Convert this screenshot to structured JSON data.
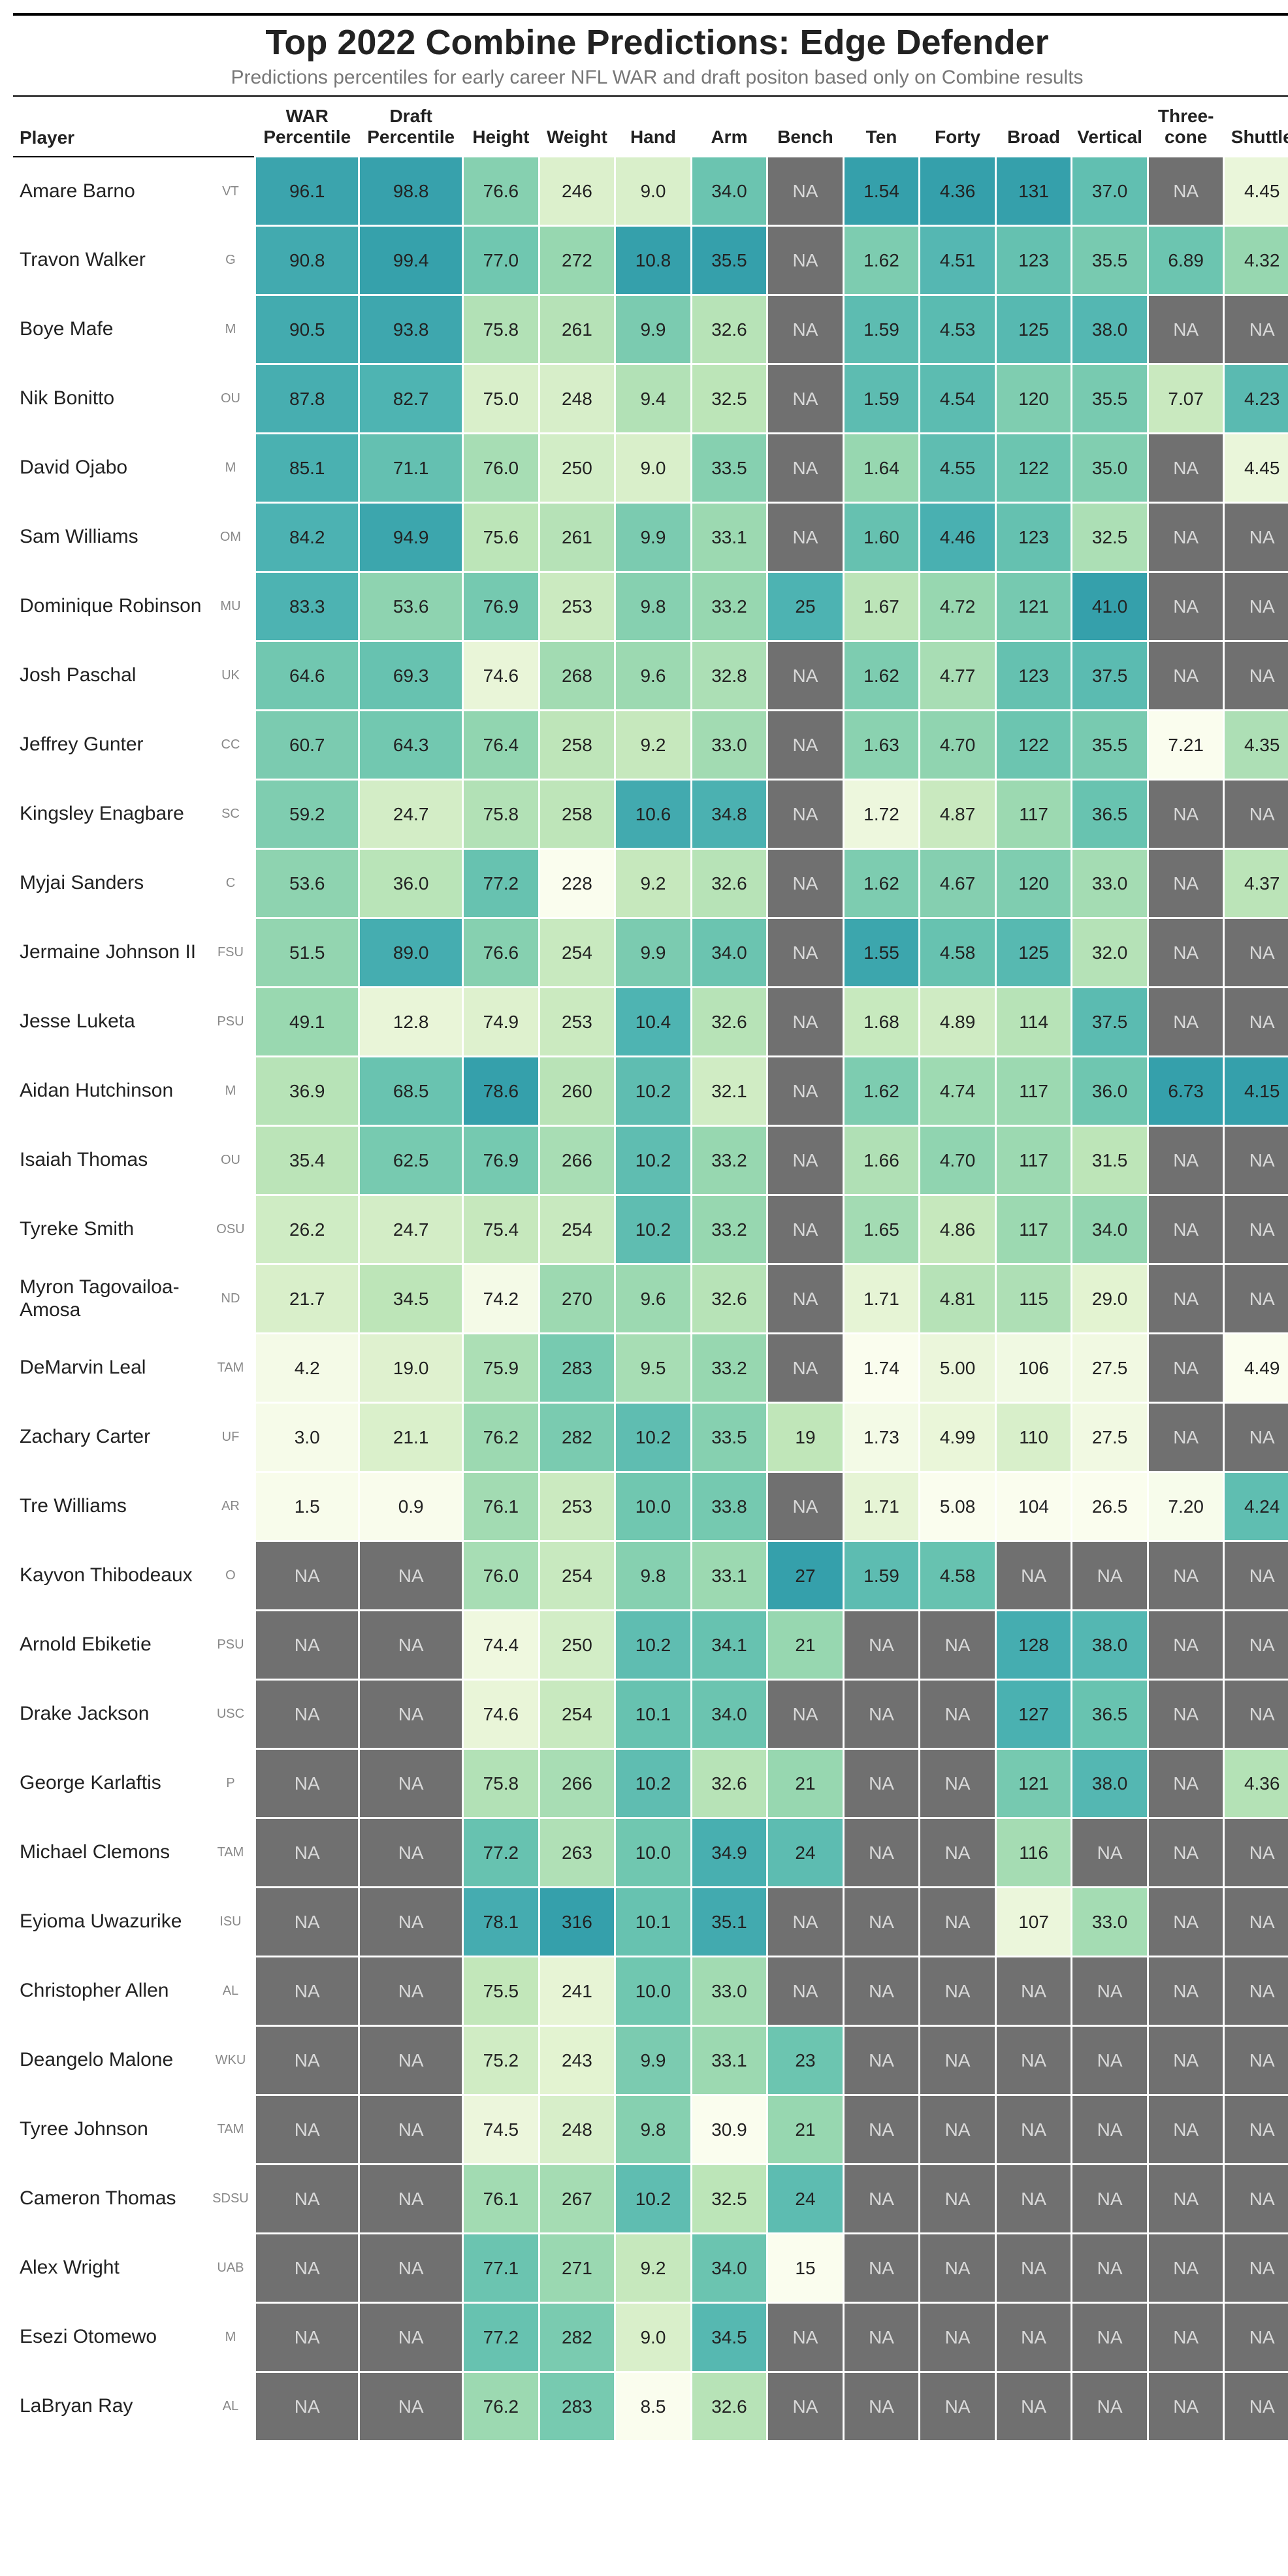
{
  "title": "Top 2022 Combine Predictions: Edge Defender",
  "subtitle": "Predictions percentiles for early career NFL WAR and draft positon based only on Combine results",
  "columns": [
    {
      "key": "player",
      "label": "Player"
    },
    {
      "key": "logo",
      "label": ""
    },
    {
      "key": "war",
      "label": "WAR Percentile"
    },
    {
      "key": "draft",
      "label": "Draft Percentile"
    },
    {
      "key": "height",
      "label": "Height"
    },
    {
      "key": "weight",
      "label": "Weight"
    },
    {
      "key": "hand",
      "label": "Hand"
    },
    {
      "key": "arm",
      "label": "Arm"
    },
    {
      "key": "bench",
      "label": "Bench"
    },
    {
      "key": "ten",
      "label": "Ten"
    },
    {
      "key": "forty",
      "label": "Forty"
    },
    {
      "key": "broad",
      "label": "Broad"
    },
    {
      "key": "vertical",
      "label": "Vertical"
    },
    {
      "key": "three",
      "label": "Three-cone"
    },
    {
      "key": "shuttle",
      "label": "Shuttle"
    }
  ],
  "na_color": "#707070",
  "na_text_color": "#d9d9d9",
  "heat": {
    "war": {
      "min": 0,
      "max": 100,
      "dir": "up"
    },
    "draft": {
      "min": 0,
      "max": 100,
      "dir": "up"
    },
    "height": {
      "min": 74.0,
      "max": 78.6,
      "dir": "up"
    },
    "weight": {
      "min": 228,
      "max": 316,
      "dir": "up"
    },
    "hand": {
      "min": 8.5,
      "max": 10.8,
      "dir": "up"
    },
    "arm": {
      "min": 30.9,
      "max": 35.5,
      "dir": "up"
    },
    "bench": {
      "min": 15,
      "max": 27,
      "dir": "up"
    },
    "ten": {
      "min": 1.54,
      "max": 1.74,
      "dir": "down"
    },
    "forty": {
      "min": 4.36,
      "max": 5.08,
      "dir": "down"
    },
    "broad": {
      "min": 104,
      "max": 131,
      "dir": "up"
    },
    "vertical": {
      "min": 26.5,
      "max": 41.0,
      "dir": "up"
    },
    "three": {
      "min": 6.73,
      "max": 7.21,
      "dir": "down"
    },
    "shuttle": {
      "min": 4.15,
      "max": 4.49,
      "dir": "down"
    }
  },
  "color_scale": [
    "#fafdee",
    "#e4f3d2",
    "#c0e6b9",
    "#97d7b0",
    "#6cc5b0",
    "#4db3b2",
    "#35a0ab"
  ],
  "rows": [
    {
      "player": "Amare Barno",
      "team": "VT",
      "war": "96.1",
      "draft": "98.8",
      "height": "76.6",
      "weight": "246",
      "hand": "9.0",
      "arm": "34.0",
      "bench": "NA",
      "ten": "1.54",
      "forty": "4.36",
      "broad": "131",
      "vertical": "37.0",
      "three": "NA",
      "shuttle": "4.45"
    },
    {
      "player": "Travon Walker",
      "team": "G",
      "war": "90.8",
      "draft": "99.4",
      "height": "77.0",
      "weight": "272",
      "hand": "10.8",
      "arm": "35.5",
      "bench": "NA",
      "ten": "1.62",
      "forty": "4.51",
      "broad": "123",
      "vertical": "35.5",
      "three": "6.89",
      "shuttle": "4.32"
    },
    {
      "player": "Boye Mafe",
      "team": "M",
      "war": "90.5",
      "draft": "93.8",
      "height": "75.8",
      "weight": "261",
      "hand": "9.9",
      "arm": "32.6",
      "bench": "NA",
      "ten": "1.59",
      "forty": "4.53",
      "broad": "125",
      "vertical": "38.0",
      "three": "NA",
      "shuttle": "NA"
    },
    {
      "player": "Nik Bonitto",
      "team": "OU",
      "war": "87.8",
      "draft": "82.7",
      "height": "75.0",
      "weight": "248",
      "hand": "9.4",
      "arm": "32.5",
      "bench": "NA",
      "ten": "1.59",
      "forty": "4.54",
      "broad": "120",
      "vertical": "35.5",
      "three": "7.07",
      "shuttle": "4.23"
    },
    {
      "player": "David Ojabo",
      "team": "M",
      "war": "85.1",
      "draft": "71.1",
      "height": "76.0",
      "weight": "250",
      "hand": "9.0",
      "arm": "33.5",
      "bench": "NA",
      "ten": "1.64",
      "forty": "4.55",
      "broad": "122",
      "vertical": "35.0",
      "three": "NA",
      "shuttle": "4.45"
    },
    {
      "player": "Sam Williams",
      "team": "OM",
      "war": "84.2",
      "draft": "94.9",
      "height": "75.6",
      "weight": "261",
      "hand": "9.9",
      "arm": "33.1",
      "bench": "NA",
      "ten": "1.60",
      "forty": "4.46",
      "broad": "123",
      "vertical": "32.5",
      "three": "NA",
      "shuttle": "NA"
    },
    {
      "player": "Dominique Robinson",
      "team": "MU",
      "war": "83.3",
      "draft": "53.6",
      "height": "76.9",
      "weight": "253",
      "hand": "9.8",
      "arm": "33.2",
      "bench": "25",
      "ten": "1.67",
      "forty": "4.72",
      "broad": "121",
      "vertical": "41.0",
      "three": "NA",
      "shuttle": "NA"
    },
    {
      "player": "Josh Paschal",
      "team": "UK",
      "war": "64.6",
      "draft": "69.3",
      "height": "74.6",
      "weight": "268",
      "hand": "9.6",
      "arm": "32.8",
      "bench": "NA",
      "ten": "1.62",
      "forty": "4.77",
      "broad": "123",
      "vertical": "37.5",
      "three": "NA",
      "shuttle": "NA"
    },
    {
      "player": "Jeffrey Gunter",
      "team": "CC",
      "war": "60.7",
      "draft": "64.3",
      "height": "76.4",
      "weight": "258",
      "hand": "9.2",
      "arm": "33.0",
      "bench": "NA",
      "ten": "1.63",
      "forty": "4.70",
      "broad": "122",
      "vertical": "35.5",
      "three": "7.21",
      "shuttle": "4.35"
    },
    {
      "player": "Kingsley Enagbare",
      "team": "SC",
      "war": "59.2",
      "draft": "24.7",
      "height": "75.8",
      "weight": "258",
      "hand": "10.6",
      "arm": "34.8",
      "bench": "NA",
      "ten": "1.72",
      "forty": "4.87",
      "broad": "117",
      "vertical": "36.5",
      "three": "NA",
      "shuttle": "NA"
    },
    {
      "player": "Myjai Sanders",
      "team": "C",
      "war": "53.6",
      "draft": "36.0",
      "height": "77.2",
      "weight": "228",
      "hand": "9.2",
      "arm": "32.6",
      "bench": "NA",
      "ten": "1.62",
      "forty": "4.67",
      "broad": "120",
      "vertical": "33.0",
      "three": "NA",
      "shuttle": "4.37"
    },
    {
      "player": "Jermaine Johnson II",
      "team": "FSU",
      "war": "51.5",
      "draft": "89.0",
      "height": "76.6",
      "weight": "254",
      "hand": "9.9",
      "arm": "34.0",
      "bench": "NA",
      "ten": "1.55",
      "forty": "4.58",
      "broad": "125",
      "vertical": "32.0",
      "three": "NA",
      "shuttle": "NA"
    },
    {
      "player": "Jesse Luketa",
      "team": "PSU",
      "war": "49.1",
      "draft": "12.8",
      "height": "74.9",
      "weight": "253",
      "hand": "10.4",
      "arm": "32.6",
      "bench": "NA",
      "ten": "1.68",
      "forty": "4.89",
      "broad": "114",
      "vertical": "37.5",
      "three": "NA",
      "shuttle": "NA"
    },
    {
      "player": "Aidan Hutchinson",
      "team": "M",
      "war": "36.9",
      "draft": "68.5",
      "height": "78.6",
      "weight": "260",
      "hand": "10.2",
      "arm": "32.1",
      "bench": "NA",
      "ten": "1.62",
      "forty": "4.74",
      "broad": "117",
      "vertical": "36.0",
      "three": "6.73",
      "shuttle": "4.15"
    },
    {
      "player": "Isaiah Thomas",
      "team": "OU",
      "war": "35.4",
      "draft": "62.5",
      "height": "76.9",
      "weight": "266",
      "hand": "10.2",
      "arm": "33.2",
      "bench": "NA",
      "ten": "1.66",
      "forty": "4.70",
      "broad": "117",
      "vertical": "31.5",
      "three": "NA",
      "shuttle": "NA"
    },
    {
      "player": "Tyreke Smith",
      "team": "OSU",
      "war": "26.2",
      "draft": "24.7",
      "height": "75.4",
      "weight": "254",
      "hand": "10.2",
      "arm": "33.2",
      "bench": "NA",
      "ten": "1.65",
      "forty": "4.86",
      "broad": "117",
      "vertical": "34.0",
      "three": "NA",
      "shuttle": "NA"
    },
    {
      "player": "Myron Tagovailoa-Amosa",
      "team": "ND",
      "war": "21.7",
      "draft": "34.5",
      "height": "74.2",
      "weight": "270",
      "hand": "9.6",
      "arm": "32.6",
      "bench": "NA",
      "ten": "1.71",
      "forty": "4.81",
      "broad": "115",
      "vertical": "29.0",
      "three": "NA",
      "shuttle": "NA"
    },
    {
      "player": "DeMarvin Leal",
      "team": "TAM",
      "war": "4.2",
      "draft": "19.0",
      "height": "75.9",
      "weight": "283",
      "hand": "9.5",
      "arm": "33.2",
      "bench": "NA",
      "ten": "1.74",
      "forty": "5.00",
      "broad": "106",
      "vertical": "27.5",
      "three": "NA",
      "shuttle": "4.49"
    },
    {
      "player": "Zachary Carter",
      "team": "UF",
      "war": "3.0",
      "draft": "21.1",
      "height": "76.2",
      "weight": "282",
      "hand": "10.2",
      "arm": "33.5",
      "bench": "19",
      "ten": "1.73",
      "forty": "4.99",
      "broad": "110",
      "vertical": "27.5",
      "three": "NA",
      "shuttle": "NA"
    },
    {
      "player": "Tre Williams",
      "team": "AR",
      "war": "1.5",
      "draft": "0.9",
      "height": "76.1",
      "weight": "253",
      "hand": "10.0",
      "arm": "33.8",
      "bench": "NA",
      "ten": "1.71",
      "forty": "5.08",
      "broad": "104",
      "vertical": "26.5",
      "three": "7.20",
      "shuttle": "4.24"
    },
    {
      "player": "Kayvon Thibodeaux",
      "team": "O",
      "war": "NA",
      "draft": "NA",
      "height": "76.0",
      "weight": "254",
      "hand": "9.8",
      "arm": "33.1",
      "bench": "27",
      "ten": "1.59",
      "forty": "4.58",
      "broad": "NA",
      "vertical": "NA",
      "three": "NA",
      "shuttle": "NA"
    },
    {
      "player": "Arnold Ebiketie",
      "team": "PSU",
      "war": "NA",
      "draft": "NA",
      "height": "74.4",
      "weight": "250",
      "hand": "10.2",
      "arm": "34.1",
      "bench": "21",
      "ten": "NA",
      "forty": "NA",
      "broad": "128",
      "vertical": "38.0",
      "three": "NA",
      "shuttle": "NA"
    },
    {
      "player": "Drake Jackson",
      "team": "USC",
      "war": "NA",
      "draft": "NA",
      "height": "74.6",
      "weight": "254",
      "hand": "10.1",
      "arm": "34.0",
      "bench": "NA",
      "ten": "NA",
      "forty": "NA",
      "broad": "127",
      "vertical": "36.5",
      "three": "NA",
      "shuttle": "NA"
    },
    {
      "player": "George Karlaftis",
      "team": "P",
      "war": "NA",
      "draft": "NA",
      "height": "75.8",
      "weight": "266",
      "hand": "10.2",
      "arm": "32.6",
      "bench": "21",
      "ten": "NA",
      "forty": "NA",
      "broad": "121",
      "vertical": "38.0",
      "three": "NA",
      "shuttle": "4.36"
    },
    {
      "player": "Michael Clemons",
      "team": "TAM",
      "war": "NA",
      "draft": "NA",
      "height": "77.2",
      "weight": "263",
      "hand": "10.0",
      "arm": "34.9",
      "bench": "24",
      "ten": "NA",
      "forty": "NA",
      "broad": "116",
      "vertical": "NA",
      "three": "NA",
      "shuttle": "NA"
    },
    {
      "player": "Eyioma Uwazurike",
      "team": "ISU",
      "war": "NA",
      "draft": "NA",
      "height": "78.1",
      "weight": "316",
      "hand": "10.1",
      "arm": "35.1",
      "bench": "NA",
      "ten": "NA",
      "forty": "NA",
      "broad": "107",
      "vertical": "33.0",
      "three": "NA",
      "shuttle": "NA"
    },
    {
      "player": "Christopher Allen",
      "team": "AL",
      "war": "NA",
      "draft": "NA",
      "height": "75.5",
      "weight": "241",
      "hand": "10.0",
      "arm": "33.0",
      "bench": "NA",
      "ten": "NA",
      "forty": "NA",
      "broad": "NA",
      "vertical": "NA",
      "three": "NA",
      "shuttle": "NA"
    },
    {
      "player": "Deangelo Malone",
      "team": "WKU",
      "war": "NA",
      "draft": "NA",
      "height": "75.2",
      "weight": "243",
      "hand": "9.9",
      "arm": "33.1",
      "bench": "23",
      "ten": "NA",
      "forty": "NA",
      "broad": "NA",
      "vertical": "NA",
      "three": "NA",
      "shuttle": "NA"
    },
    {
      "player": "Tyree Johnson",
      "team": "TAM",
      "war": "NA",
      "draft": "NA",
      "height": "74.5",
      "weight": "248",
      "hand": "9.8",
      "arm": "30.9",
      "bench": "21",
      "ten": "NA",
      "forty": "NA",
      "broad": "NA",
      "vertical": "NA",
      "three": "NA",
      "shuttle": "NA"
    },
    {
      "player": "Cameron Thomas",
      "team": "SDSU",
      "war": "NA",
      "draft": "NA",
      "height": "76.1",
      "weight": "267",
      "hand": "10.2",
      "arm": "32.5",
      "bench": "24",
      "ten": "NA",
      "forty": "NA",
      "broad": "NA",
      "vertical": "NA",
      "three": "NA",
      "shuttle": "NA"
    },
    {
      "player": "Alex Wright",
      "team": "UAB",
      "war": "NA",
      "draft": "NA",
      "height": "77.1",
      "weight": "271",
      "hand": "9.2",
      "arm": "34.0",
      "bench": "15",
      "ten": "NA",
      "forty": "NA",
      "broad": "NA",
      "vertical": "NA",
      "three": "NA",
      "shuttle": "NA"
    },
    {
      "player": "Esezi Otomewo",
      "team": "M",
      "war": "NA",
      "draft": "NA",
      "height": "77.2",
      "weight": "282",
      "hand": "9.0",
      "arm": "34.5",
      "bench": "NA",
      "ten": "NA",
      "forty": "NA",
      "broad": "NA",
      "vertical": "NA",
      "three": "NA",
      "shuttle": "NA"
    },
    {
      "player": "LaBryan Ray",
      "team": "AL",
      "war": "NA",
      "draft": "NA",
      "height": "76.2",
      "weight": "283",
      "hand": "8.5",
      "arm": "32.6",
      "bench": "NA",
      "ten": "NA",
      "forty": "NA",
      "broad": "NA",
      "vertical": "NA",
      "three": "NA",
      "shuttle": "NA"
    }
  ]
}
